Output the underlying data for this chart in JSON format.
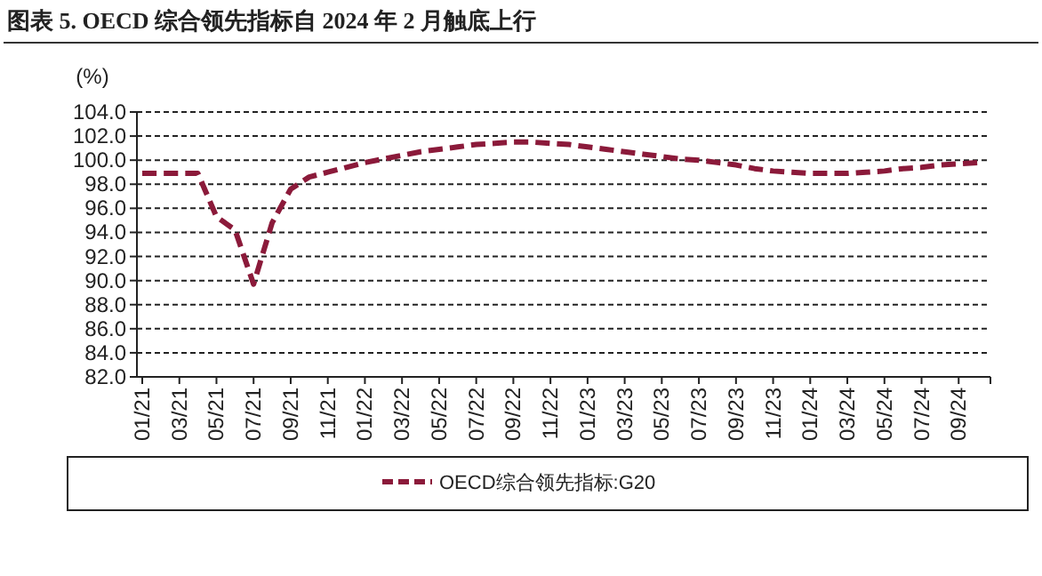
{
  "chart_data": {
    "type": "line",
    "title": "图表 5. OECD 综合领先指标自 2024 年 2 月触底上行",
    "ylabel": "(%)",
    "categories": [
      "01/21",
      null,
      "03/21",
      null,
      "05/21",
      null,
      "07/21",
      null,
      "09/21",
      null,
      "11/21",
      null,
      "01/22",
      null,
      "03/22",
      null,
      "05/22",
      null,
      "07/22",
      null,
      "09/22",
      null,
      "11/22",
      null,
      "01/23",
      null,
      "03/23",
      null,
      "05/23",
      null,
      "07/23",
      null,
      "09/23",
      null,
      "11/23",
      null,
      "01/24",
      null,
      "03/24",
      null,
      "05/24",
      null,
      "07/24",
      null,
      "09/24",
      null
    ],
    "series": [
      {
        "name": "OECD综合领先指标:G20",
        "color": "#8b1a3a",
        "values": [
          98.9,
          98.9,
          98.9,
          98.9,
          95.3,
          94.2,
          89.7,
          94.8,
          97.6,
          98.6,
          99.0,
          99.4,
          99.8,
          100.1,
          100.4,
          100.7,
          100.9,
          101.1,
          101.3,
          101.4,
          101.5,
          101.5,
          101.4,
          101.3,
          101.1,
          100.9,
          100.7,
          100.5,
          100.3,
          100.1,
          100.0,
          99.8,
          99.6,
          99.3,
          99.1,
          99.0,
          98.9,
          98.9,
          98.9,
          99.0,
          99.1,
          99.3,
          99.4,
          99.6,
          99.7,
          99.8
        ]
      }
    ],
    "ylim": [
      82,
      104
    ],
    "yticks": [
      {
        "value": 82,
        "label": "82.0"
      },
      {
        "value": 84,
        "label": "84.0"
      },
      {
        "value": 86,
        "label": "86.0"
      },
      {
        "value": 88,
        "label": "88.0"
      },
      {
        "value": 90,
        "label": "90.0"
      },
      {
        "value": 92,
        "label": "92.0"
      },
      {
        "value": 94,
        "label": "94.0"
      },
      {
        "value": 96,
        "label": "96.0"
      },
      {
        "value": 98,
        "label": "98.0"
      },
      {
        "value": 100,
        "label": "100.0"
      },
      {
        "value": 102,
        "label": "102.0"
      },
      {
        "value": 104,
        "label": "104.0"
      }
    ],
    "grid": "y",
    "legend": "bottom",
    "marker": "none",
    "line_style": "dashed"
  }
}
